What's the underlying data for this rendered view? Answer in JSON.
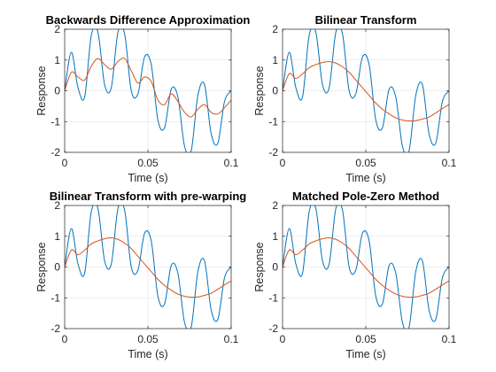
{
  "figure": {
    "background": "#ffffff",
    "axes_color": "#262626",
    "grid_color": "#dfdfdf"
  },
  "chart_data": [
    {
      "type": "line",
      "title": "Backwards Difference Approximation",
      "xlabel": "Time (s)",
      "ylabel": "Response",
      "xlim": [
        0,
        0.1
      ],
      "ylim": [
        -2,
        2
      ],
      "xticks": [
        0,
        0.05,
        0.1
      ],
      "xtick_labels": [
        "0",
        "0.05",
        "0.1"
      ],
      "yticks": [
        -2,
        -1,
        0,
        1,
        2
      ],
      "ytick_labels": [
        "-2",
        "-1",
        "0",
        "1",
        "2"
      ],
      "grid": true,
      "series": [
        {
          "color": "#0072bd",
          "x": [
            0,
            0.004,
            0.008,
            0.012,
            0.016,
            0.02,
            0.024,
            0.028,
            0.032,
            0.036,
            0.04,
            0.044,
            0.048,
            0.052,
            0.056,
            0.06,
            0.064,
            0.068,
            0.072,
            0.076,
            0.08,
            0.084,
            0.088,
            0.092,
            0.096,
            0.1
          ],
          "y": [
            0,
            1.25,
            0.1,
            -0.2,
            1.8,
            1.9,
            0.2,
            0.1,
            1.9,
            1.85,
            0.0,
            -0.1,
            1.1,
            0.85,
            -0.95,
            -1.2,
            0.05,
            -0.2,
            -1.8,
            -1.95,
            -0.15,
            0.2,
            -1.4,
            -1.7,
            -0.35,
            0
          ]
        },
        {
          "color": "#d95319",
          "x": [
            0,
            0.004,
            0.008,
            0.012,
            0.016,
            0.02,
            0.024,
            0.028,
            0.032,
            0.036,
            0.04,
            0.044,
            0.048,
            0.052,
            0.056,
            0.06,
            0.064,
            0.068,
            0.072,
            0.076,
            0.08,
            0.084,
            0.088,
            0.092,
            0.096,
            0.1
          ],
          "y": [
            0,
            0.6,
            0.45,
            0.35,
            0.8,
            1.05,
            0.85,
            0.7,
            0.95,
            1.05,
            0.65,
            0.25,
            0.45,
            0.3,
            -0.3,
            -0.45,
            -0.1,
            -0.35,
            -0.7,
            -0.85,
            -0.6,
            -0.45,
            -0.7,
            -0.75,
            -0.55,
            -0.3
          ]
        }
      ]
    },
    {
      "type": "line",
      "title": "Bilinear Transform",
      "xlabel": "Time (s)",
      "ylabel": "Response",
      "xlim": [
        0,
        0.1
      ],
      "ylim": [
        -2,
        2
      ],
      "xticks": [
        0,
        0.05,
        0.1
      ],
      "xtick_labels": [
        "0",
        "0.05",
        "0.1"
      ],
      "yticks": [
        -2,
        -1,
        0,
        1,
        2
      ],
      "ytick_labels": [
        "-2",
        "-1",
        "0",
        "1",
        "2"
      ],
      "grid": true,
      "series": [
        {
          "color": "#0072bd",
          "x": [
            0,
            0.004,
            0.008,
            0.012,
            0.016,
            0.02,
            0.024,
            0.028,
            0.032,
            0.036,
            0.04,
            0.044,
            0.048,
            0.052,
            0.056,
            0.06,
            0.064,
            0.068,
            0.072,
            0.076,
            0.08,
            0.084,
            0.088,
            0.092,
            0.096,
            0.1
          ],
          "y": [
            0,
            1.25,
            0.1,
            -0.2,
            1.8,
            1.9,
            0.2,
            0.1,
            1.9,
            1.85,
            0.0,
            -0.1,
            1.1,
            0.85,
            -0.95,
            -1.2,
            0.05,
            -0.2,
            -1.8,
            -1.95,
            -0.15,
            0.2,
            -1.4,
            -1.7,
            -0.35,
            0
          ]
        },
        {
          "color": "#d95319",
          "x": [
            0,
            0.004,
            0.008,
            0.012,
            0.016,
            0.02,
            0.024,
            0.028,
            0.032,
            0.036,
            0.04,
            0.044,
            0.048,
            0.052,
            0.056,
            0.06,
            0.064,
            0.068,
            0.072,
            0.076,
            0.08,
            0.084,
            0.088,
            0.092,
            0.096,
            0.1
          ],
          "y": [
            0,
            0.55,
            0.4,
            0.55,
            0.75,
            0.85,
            0.92,
            0.95,
            0.9,
            0.78,
            0.6,
            0.35,
            0.1,
            -0.15,
            -0.4,
            -0.6,
            -0.75,
            -0.88,
            -0.95,
            -0.98,
            -0.97,
            -0.92,
            -0.85,
            -0.72,
            -0.58,
            -0.45
          ]
        }
      ]
    },
    {
      "type": "line",
      "title": "Bilinear Transform with pre-warping",
      "xlabel": "Time (s)",
      "ylabel": "Response",
      "xlim": [
        0,
        0.1
      ],
      "ylim": [
        -2,
        2
      ],
      "xticks": [
        0,
        0.05,
        0.1
      ],
      "xtick_labels": [
        "0",
        "0.05",
        "0.1"
      ],
      "yticks": [
        -2,
        -1,
        0,
        1,
        2
      ],
      "ytick_labels": [
        "-2",
        "-1",
        "0",
        "1",
        "2"
      ],
      "grid": true,
      "series": [
        {
          "color": "#0072bd",
          "x": [
            0,
            0.004,
            0.008,
            0.012,
            0.016,
            0.02,
            0.024,
            0.028,
            0.032,
            0.036,
            0.04,
            0.044,
            0.048,
            0.052,
            0.056,
            0.06,
            0.064,
            0.068,
            0.072,
            0.076,
            0.08,
            0.084,
            0.088,
            0.092,
            0.096,
            0.1
          ],
          "y": [
            0,
            1.25,
            0.1,
            -0.2,
            1.8,
            1.9,
            0.2,
            0.1,
            1.9,
            1.85,
            0.0,
            -0.1,
            1.1,
            0.85,
            -0.95,
            -1.2,
            0.05,
            -0.2,
            -1.8,
            -1.95,
            -0.15,
            0.2,
            -1.4,
            -1.7,
            -0.35,
            0
          ]
        },
        {
          "color": "#d95319",
          "x": [
            0,
            0.004,
            0.008,
            0.012,
            0.016,
            0.02,
            0.024,
            0.028,
            0.032,
            0.036,
            0.04,
            0.044,
            0.048,
            0.052,
            0.056,
            0.06,
            0.064,
            0.068,
            0.072,
            0.076,
            0.08,
            0.084,
            0.088,
            0.092,
            0.096,
            0.1
          ],
          "y": [
            0,
            0.55,
            0.4,
            0.55,
            0.75,
            0.85,
            0.92,
            0.95,
            0.9,
            0.78,
            0.6,
            0.35,
            0.1,
            -0.15,
            -0.4,
            -0.6,
            -0.75,
            -0.88,
            -0.95,
            -0.98,
            -0.97,
            -0.92,
            -0.85,
            -0.72,
            -0.58,
            -0.45
          ]
        }
      ]
    },
    {
      "type": "line",
      "title": "Matched Pole-Zero Method",
      "xlabel": "Time (s)",
      "ylabel": "Response",
      "xlim": [
        0,
        0.1
      ],
      "ylim": [
        -2,
        2
      ],
      "xticks": [
        0,
        0.05,
        0.1
      ],
      "xtick_labels": [
        "0",
        "0.05",
        "0.1"
      ],
      "yticks": [
        -2,
        -1,
        0,
        1,
        2
      ],
      "ytick_labels": [
        "-2",
        "-1",
        "0",
        "1",
        "2"
      ],
      "grid": true,
      "series": [
        {
          "color": "#0072bd",
          "x": [
            0,
            0.004,
            0.008,
            0.012,
            0.016,
            0.02,
            0.024,
            0.028,
            0.032,
            0.036,
            0.04,
            0.044,
            0.048,
            0.052,
            0.056,
            0.06,
            0.064,
            0.068,
            0.072,
            0.076,
            0.08,
            0.084,
            0.088,
            0.092,
            0.096,
            0.1
          ],
          "y": [
            0,
            1.25,
            0.1,
            -0.2,
            1.8,
            1.9,
            0.2,
            0.1,
            1.9,
            1.85,
            0.0,
            -0.1,
            1.1,
            0.85,
            -0.95,
            -1.2,
            0.05,
            -0.2,
            -1.8,
            -1.95,
            -0.15,
            0.2,
            -1.4,
            -1.7,
            -0.35,
            0
          ]
        },
        {
          "color": "#d95319",
          "x": [
            0,
            0.004,
            0.008,
            0.012,
            0.016,
            0.02,
            0.024,
            0.028,
            0.032,
            0.036,
            0.04,
            0.044,
            0.048,
            0.052,
            0.056,
            0.06,
            0.064,
            0.068,
            0.072,
            0.076,
            0.08,
            0.084,
            0.088,
            0.092,
            0.096,
            0.1
          ],
          "y": [
            0,
            0.55,
            0.4,
            0.55,
            0.75,
            0.85,
            0.92,
            0.95,
            0.9,
            0.78,
            0.6,
            0.35,
            0.1,
            -0.15,
            -0.4,
            -0.6,
            -0.75,
            -0.88,
            -0.95,
            -0.98,
            -0.97,
            -0.92,
            -0.85,
            -0.72,
            -0.58,
            -0.45
          ]
        }
      ]
    }
  ]
}
